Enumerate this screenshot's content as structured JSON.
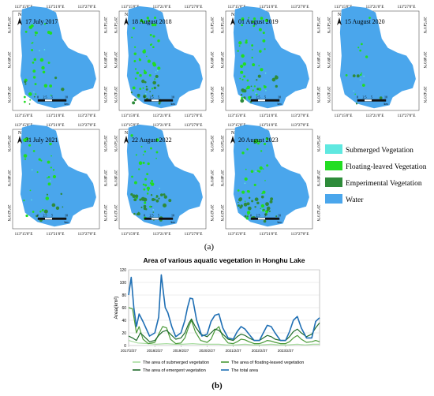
{
  "maps": {
    "lon_labels": [
      "113°15'0\"E",
      "113°21'0\"E",
      "113°27'0\"E"
    ],
    "lat_labels": [
      "29°54'0\"N",
      "29°48'0\"N",
      "29°42'0\"N"
    ],
    "north_label": "N",
    "scale_ticks": [
      "0",
      "2.5",
      "5",
      "10"
    ],
    "scale_unit": "km",
    "panels": [
      {
        "date": "17 July 2017"
      },
      {
        "date": "18 August 2018"
      },
      {
        "date": "01 August 2019"
      },
      {
        "date": "15 August 2020"
      },
      {
        "date": "31 July 2021"
      },
      {
        "date": "22 August 2022"
      },
      {
        "date": "20 August 2023"
      }
    ]
  },
  "legend": {
    "items": [
      {
        "label": "Submerged Vegetation",
        "color": "#5fe8e0"
      },
      {
        "label": "Floating-leaved Vegetation",
        "color": "#22dd22"
      },
      {
        "label": "Emperimental Vegetation",
        "color": "#2e8b3a"
      },
      {
        "label": "Water",
        "color": "#4aa6ec"
      }
    ]
  },
  "caption_a": "(a)",
  "caption_b": "(b)",
  "chart_data": {
    "type": "line",
    "title": "Area of various aquatic vegetation in Honghu Lake",
    "ylabel": "Area(km²)",
    "xlabel": "",
    "ylim": [
      0,
      120
    ],
    "yticks": [
      0,
      20,
      40,
      60,
      80,
      100,
      120
    ],
    "xlim": [
      2017.15,
      2024.45
    ],
    "xtick_positions": [
      2017.15,
      2018.15,
      2019.15,
      2020.15,
      2021.15,
      2022.15,
      2023.15
    ],
    "xtick_labels": [
      "2017/2/27",
      "2018/2/27",
      "2019/2/27",
      "2020/2/27",
      "2021/2/27",
      "2022/2/27",
      "2023/2/27"
    ],
    "grid": true,
    "legend_position": "bottom",
    "series": [
      {
        "name": "The area of submerged vegetation",
        "color": "#a8dca0",
        "x": [
          2017.15,
          2017.5,
          2017.9,
          2018.2,
          2018.6,
          2018.9,
          2019.2,
          2019.6,
          2019.9,
          2020.2,
          2020.6,
          2020.9,
          2021.2,
          2021.6,
          2021.9,
          2022.2,
          2022.6,
          2022.9,
          2023.2,
          2023.6,
          2023.9,
          2024.2,
          2024.45
        ],
        "values": [
          8,
          4,
          3,
          2,
          3,
          2,
          2,
          3,
          2,
          2,
          2,
          1,
          1,
          2,
          1,
          1,
          2,
          1,
          1,
          2,
          1,
          2,
          2
        ]
      },
      {
        "name": "The area of floating-leaved vegetation",
        "color": "#4a9a38",
        "x": [
          2017.15,
          2017.3,
          2017.45,
          2017.55,
          2017.7,
          2017.9,
          2018.15,
          2018.3,
          2018.45,
          2018.6,
          2018.75,
          2018.95,
          2019.15,
          2019.3,
          2019.45,
          2019.55,
          2019.7,
          2019.9,
          2020.15,
          2020.3,
          2020.45,
          2020.6,
          2020.75,
          2020.95,
          2021.15,
          2021.3,
          2021.45,
          2021.6,
          2021.75,
          2021.95,
          2022.15,
          2022.3,
          2022.45,
          2022.6,
          2022.75,
          2022.95,
          2023.15,
          2023.3,
          2023.45,
          2023.6,
          2023.75,
          2023.95,
          2024.15,
          2024.3,
          2024.45
        ],
        "values": [
          60,
          58,
          20,
          30,
          10,
          3,
          5,
          18,
          30,
          28,
          10,
          3,
          4,
          12,
          30,
          40,
          22,
          8,
          5,
          10,
          24,
          30,
          14,
          4,
          3,
          6,
          10,
          9,
          6,
          3,
          3,
          5,
          8,
          7,
          5,
          3,
          3,
          6,
          12,
          16,
          10,
          5,
          6,
          8,
          6
        ]
      },
      {
        "name": "The area of emergent vegetation",
        "color": "#1f6a2a",
        "x": [
          2017.15,
          2017.3,
          2017.45,
          2017.6,
          2017.75,
          2017.95,
          2018.15,
          2018.3,
          2018.45,
          2018.6,
          2018.75,
          2018.95,
          2019.15,
          2019.3,
          2019.45,
          2019.55,
          2019.7,
          2019.9,
          2020.15,
          2020.3,
          2020.45,
          2020.6,
          2020.75,
          2020.95,
          2021.15,
          2021.3,
          2021.45,
          2021.6,
          2021.75,
          2021.95,
          2022.15,
          2022.3,
          2022.45,
          2022.6,
          2022.75,
          2022.95,
          2023.15,
          2023.3,
          2023.45,
          2023.6,
          2023.75,
          2023.95,
          2024.15,
          2024.3,
          2024.45
        ],
        "values": [
          15,
          12,
          8,
          20,
          14,
          6,
          8,
          16,
          22,
          24,
          18,
          10,
          12,
          20,
          35,
          42,
          30,
          18,
          14,
          20,
          26,
          24,
          18,
          10,
          8,
          14,
          18,
          16,
          12,
          8,
          8,
          12,
          16,
          14,
          10,
          8,
          8,
          14,
          22,
          26,
          20,
          14,
          18,
          28,
          36
        ]
      },
      {
        "name": "The total area",
        "color": "#1f6fb4",
        "x": [
          2017.15,
          2017.25,
          2017.35,
          2017.45,
          2017.55,
          2017.7,
          2017.95,
          2018.15,
          2018.3,
          2018.4,
          2018.55,
          2018.65,
          2018.8,
          2018.95,
          2019.15,
          2019.3,
          2019.4,
          2019.5,
          2019.6,
          2019.75,
          2019.95,
          2020.15,
          2020.3,
          2020.45,
          2020.6,
          2020.75,
          2020.95,
          2021.15,
          2021.3,
          2021.45,
          2021.6,
          2021.75,
          2021.95,
          2022.15,
          2022.3,
          2022.45,
          2022.6,
          2022.75,
          2022.95,
          2023.15,
          2023.3,
          2023.45,
          2023.6,
          2023.75,
          2023.95,
          2024.15,
          2024.3,
          2024.45
        ],
        "values": [
          80,
          108,
          60,
          30,
          50,
          38,
          15,
          20,
          45,
          112,
          60,
          52,
          30,
          14,
          20,
          40,
          60,
          75,
          74,
          40,
          15,
          18,
          38,
          48,
          50,
          28,
          12,
          10,
          22,
          30,
          26,
          18,
          8,
          8,
          20,
          32,
          30,
          20,
          8,
          8,
          22,
          40,
          46,
          28,
          12,
          12,
          38,
          44
        ]
      }
    ]
  }
}
